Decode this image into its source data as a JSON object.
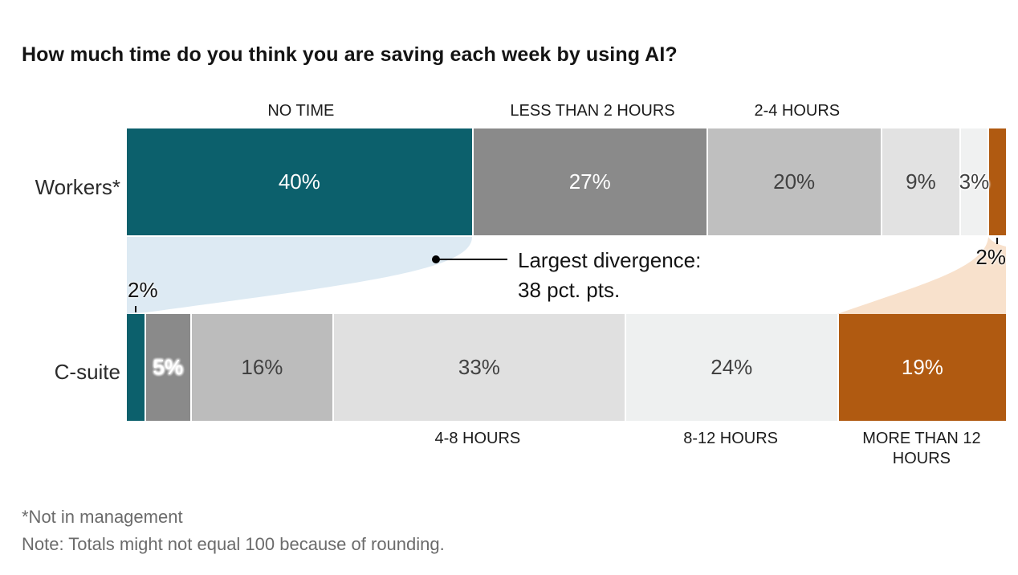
{
  "title": "How much time do you think you are saving each week by using AI?",
  "chart_data": {
    "type": "bar",
    "subtype": "horizontal-stacked-comparison",
    "unit": "%",
    "categories": [
      "NO TIME",
      "LESS THAN 2 HOURS",
      "2-4 HOURS",
      "4-8 HOURS",
      "8-12 HOURS",
      "MORE THAN 12 HOURS"
    ],
    "series": [
      {
        "name": "Workers*",
        "values": [
          40,
          27,
          20,
          9,
          3,
          2
        ]
      },
      {
        "name": "C-suite",
        "values": [
          2,
          5,
          16,
          33,
          24,
          19
        ]
      }
    ],
    "top_axis_categories_indices": [
      0,
      1,
      2
    ],
    "bottom_axis_categories_indices": [
      3,
      4,
      5
    ],
    "outside_label_index": {
      "workers": 5,
      "csuite": 0
    },
    "annotations": {
      "divergence_line1": "Largest divergence:",
      "divergence_line2": "38 pct. pts.",
      "workers_more_than_12_label": "2%",
      "csuite_no_time_label": "2%"
    },
    "colors": {
      "teal": "#0c606c",
      "dark_gray": "#8a8a8a",
      "medium_gray": "#bfbfbf",
      "light_gray": "#e1e1e1",
      "lighter_gray": "#eff0f0",
      "orange": "#b05a11",
      "flow_blue": "#ddeaf3",
      "flow_peach": "#f8e1cc",
      "workers_segment_colors": [
        "#0c606c",
        "#8a8a8a",
        "#bfbfbf",
        "#e2e2e2",
        "#f0f1f1",
        "#b05a11"
      ],
      "csuite_segment_colors": [
        "#0c606c",
        "#8a8a8a",
        "#bcbcbc",
        "#e0e0e0",
        "#eef0f0",
        "#b05a11"
      ],
      "segment_text_colors": [
        "#ffffff",
        "#ffffff",
        "#414141",
        "#414141",
        "#414141",
        "#ffffff"
      ]
    }
  },
  "row_labels": {
    "workers": "Workers*",
    "csuite": "C-suite"
  },
  "footnotes": {
    "line1": "*Not in management",
    "line2": "Note: Totals might not equal 100 because of rounding."
  }
}
